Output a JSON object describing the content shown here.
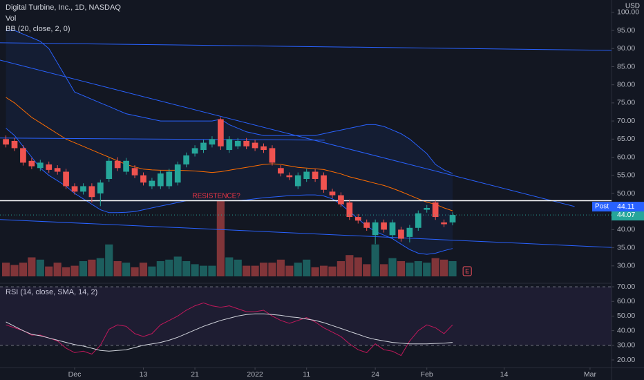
{
  "chart_data": {
    "type": "candlestick",
    "title": "Digital Turbine, Inc., 1D, NASDAQ",
    "currency": "USD",
    "x": [
      0,
      1,
      2,
      3,
      4,
      5,
      6,
      7,
      8,
      9,
      10,
      11,
      12,
      13,
      14,
      15,
      16,
      17,
      18,
      19,
      20,
      21,
      22,
      23,
      24,
      25,
      26,
      27,
      28,
      29,
      30,
      31,
      32,
      33,
      34,
      35,
      36,
      37,
      38,
      39,
      40,
      41,
      42,
      43,
      44,
      45,
      46,
      47,
      48,
      49,
      50,
      51,
      52
    ],
    "open": [
      65,
      64.5,
      62.5,
      59,
      57,
      58,
      57,
      56,
      52,
      50.5,
      52,
      50,
      54,
      59,
      56,
      57,
      55,
      52,
      52,
      52,
      53,
      58,
      61,
      62,
      63.5,
      70.5,
      62,
      63,
      64.5,
      64,
      63,
      62.5,
      57,
      55,
      52,
      54,
      56,
      55,
      50.5,
      49.5,
      47.5,
      43.5,
      42,
      38.5,
      42,
      38.5,
      40,
      38,
      40.5,
      45.5,
      47.5,
      42,
      42
    ],
    "high": [
      66,
      65.3,
      63.3,
      59.8,
      59.3,
      58.8,
      57.8,
      56.8,
      52.8,
      52.8,
      52.8,
      53.8,
      59.8,
      60,
      59.8,
      57.8,
      55.8,
      54.3,
      56.3,
      56.8,
      58.8,
      61.3,
      63.3,
      64.8,
      65.8,
      71,
      65.8,
      65.3,
      65.3,
      64.8,
      63.8,
      63.3,
      57.8,
      55.8,
      55.8,
      56.8,
      56.8,
      55.8,
      51.3,
      50.3,
      48.3,
      44.3,
      42.8,
      42.8,
      42.8,
      42.8,
      40.8,
      41.3,
      45.3,
      46.8,
      48,
      42.8,
      44.8
    ],
    "low": [
      62.7,
      61.7,
      57.7,
      56.7,
      56.2,
      55.7,
      55.2,
      51.2,
      49.7,
      49.7,
      47.5,
      46.5,
      53.2,
      56.2,
      55.2,
      54.2,
      52.2,
      51.2,
      51.2,
      51.2,
      52.2,
      57.2,
      60.2,
      61.2,
      62.7,
      62,
      61.2,
      62.2,
      62.2,
      61.7,
      61.2,
      57.7,
      54.7,
      53.7,
      51.2,
      53.2,
      53.2,
      50.2,
      48.7,
      46.2,
      42.7,
      41.7,
      39.7,
      36,
      39.2,
      37.7,
      36.7,
      36.5,
      39.7,
      44.7,
      42.7,
      40.7,
      41.2
    ],
    "close": [
      63.5,
      62.5,
      58.5,
      57.5,
      58.5,
      56.5,
      56,
      52,
      50.5,
      52,
      49,
      53,
      59,
      57,
      59,
      55,
      53,
      53.5,
      55.5,
      56,
      58,
      60.5,
      62.5,
      64,
      65,
      63,
      65,
      64.5,
      63,
      62.5,
      62,
      58.5,
      55.5,
      54.5,
      55,
      56,
      54,
      51,
      49.5,
      47,
      43.5,
      42.5,
      40.5,
      42,
      40,
      42,
      37.5,
      40.5,
      44.5,
      46,
      43.5,
      41.5,
      44.07
    ],
    "up_color": "#26a69a",
    "down_color": "#ef5350",
    "xlim": [
      -0.69,
      70.5
    ],
    "xticks": [
      {
        "value": 8,
        "label": "Dec"
      },
      {
        "value": 16,
        "label": "13"
      },
      {
        "value": 22,
        "label": "21"
      },
      {
        "value": 29,
        "label": "2022"
      },
      {
        "value": 35,
        "label": "11"
      },
      {
        "value": 43,
        "label": "24"
      },
      {
        "value": 49,
        "label": "Feb"
      },
      {
        "value": 58,
        "label": "14"
      },
      {
        "value": 68,
        "label": "Mar"
      }
    ],
    "ylim": [
      25.2,
      103.4
    ],
    "yticks": [
      {
        "value": 30,
        "label": "30.00"
      },
      {
        "value": 35,
        "label": "35.00"
      },
      {
        "value": 40,
        "label": "40.00"
      },
      {
        "value": 45,
        "label": "45.00"
      },
      {
        "value": 50,
        "label": "50.00"
      },
      {
        "value": 55,
        "label": "55.00"
      },
      {
        "value": 60,
        "label": "60.00"
      },
      {
        "value": 65,
        "label": "65.00"
      },
      {
        "value": 70,
        "label": "70.00"
      },
      {
        "value": 75,
        "label": "75.00"
      },
      {
        "value": 80,
        "label": "80.00"
      },
      {
        "value": 85,
        "label": "85.00"
      },
      {
        "value": 90,
        "label": "90.00"
      },
      {
        "value": 95,
        "label": "95.00"
      },
      {
        "value": 100,
        "label": "100.00"
      }
    ],
    "volume": {
      "name": "Vol",
      "values": [
        1.8,
        1.5,
        1.8,
        2.5,
        2.2,
        1.3,
        1.8,
        1.2,
        1.4,
        2.0,
        2.2,
        2.4,
        4.2,
        2.0,
        1.8,
        1.2,
        1.8,
        1.3,
        2.0,
        2.2,
        2.6,
        2.0,
        1.6,
        1.4,
        1.4,
        10.0,
        2.5,
        2.2,
        1.4,
        1.4,
        1.8,
        1.8,
        2.2,
        1.4,
        1.8,
        2.2,
        1.2,
        1.4,
        1.3,
        2.0,
        2.8,
        2.5,
        1.6,
        4.2,
        1.6,
        2.4,
        2.0,
        1.8,
        2.0,
        1.8,
        2.4,
        2.2,
        2.0
      ]
    },
    "bb": {
      "name": "BB (20, close, 2, 0)",
      "fill": "rgba(41,98,255,0.08)",
      "upper": {
        "color": "#2962ff",
        "values": [
          95,
          95,
          94,
          93,
          92,
          90,
          86,
          82,
          78,
          77,
          76,
          75,
          74,
          73,
          72,
          71.5,
          71,
          70.5,
          70,
          70,
          70,
          70,
          70,
          70,
          70,
          70.5,
          69,
          68,
          67,
          66.5,
          66,
          66,
          66,
          66,
          66,
          66,
          66,
          66.5,
          67,
          67.5,
          68,
          68.5,
          69,
          69,
          68.5,
          67.5,
          66.5,
          65,
          63,
          61,
          58,
          56.5,
          55.5
        ]
      },
      "basis": {
        "color": "#ff6d00",
        "values": [
          76.5,
          75,
          73,
          71,
          69.5,
          68,
          66.5,
          65,
          64,
          63,
          62,
          61,
          60,
          59,
          58,
          57.3,
          56.7,
          56.5,
          56.4,
          56.4,
          56.4,
          56.3,
          56.2,
          56,
          55.8,
          56,
          56.4,
          56.8,
          57.2,
          57.6,
          58,
          58.2,
          58,
          57.6,
          57.2,
          57,
          56.8,
          56.6,
          56,
          55.4,
          54.6,
          54,
          53.4,
          52.8,
          52.2,
          51.4,
          50.5,
          49.5,
          48.5,
          47.6,
          47,
          46,
          45.2
        ]
      },
      "lower": {
        "color": "#2962ff",
        "values": [
          68,
          66,
          63,
          60,
          57,
          55,
          53.5,
          52,
          50,
          48.5,
          47,
          45.5,
          44.7,
          44.7,
          44.8,
          45,
          45.5,
          46,
          46.5,
          47,
          47.5,
          48,
          48,
          48,
          48,
          48,
          48,
          48,
          48.2,
          48.5,
          48.8,
          49,
          49.2,
          49.4,
          49.5,
          49.6,
          49.6,
          49.3,
          48.5,
          47,
          45,
          43,
          41,
          39.5,
          38.5,
          37.5,
          36,
          34.5,
          33.5,
          33.2,
          33.5,
          34.2,
          34.8
        ]
      }
    },
    "drawings": [
      {
        "x": [
          -0.69,
          70.5
        ],
        "y": [
          91.6,
          89.5
        ],
        "color": "#2962ff"
      },
      {
        "x": [
          -0.69,
          66.2
        ],
        "y": [
          86.8,
          46.4
        ],
        "color": "#2962ff"
      },
      {
        "x": [
          -0.69,
          37.1
        ],
        "y": [
          65.3,
          64.7
        ],
        "color": "#2962ff"
      },
      {
        "x": [
          -0.69,
          70.5
        ],
        "y": [
          42.8,
          35.1
        ],
        "color": "#2962ff"
      },
      {
        "x": [
          -0.69,
          70.5
        ],
        "y": [
          48,
          48
        ],
        "color": "#ffffff"
      }
    ],
    "annotation": {
      "text": "RESISTENCE?",
      "x": 24.5,
      "y": 49.3,
      "color": "#f23645"
    },
    "post": {
      "label": "Post",
      "value": 44.11,
      "color": "#2962ff"
    },
    "last_price": 44.07,
    "earnings": {
      "label": "E",
      "x": 53.7
    },
    "rsi": {
      "name": "RSI (14, close, SMA, 14, 2)",
      "ylim": [
        14.8,
        72.4
      ],
      "yticks": [
        {
          "value": 20,
          "label": "20.00"
        },
        {
          "value": 30,
          "label": "30.00"
        },
        {
          "value": 40,
          "label": "40.00"
        },
        {
          "value": 50,
          "label": "50.00"
        },
        {
          "value": 60,
          "label": "60.00"
        },
        {
          "value": 70,
          "label": "70.00"
        }
      ],
      "bands": [
        70,
        30
      ],
      "series": [
        {
          "color": "#c2185b",
          "values": [
            44,
            42,
            40,
            37,
            37,
            35,
            33,
            28,
            25,
            26,
            24,
            30,
            41,
            44,
            43,
            38,
            36,
            38,
            44,
            47,
            50,
            54,
            57,
            59,
            57,
            56,
            57,
            55,
            53,
            53,
            54,
            50,
            47,
            45,
            47,
            49,
            46,
            42,
            39,
            36,
            31,
            27,
            25,
            31,
            27,
            26,
            23,
            33,
            40,
            44,
            42,
            38,
            44
          ]
        },
        {
          "color": "#d1d4dc",
          "values": [
            46,
            43,
            40,
            37.5,
            36.5,
            35,
            33.5,
            32,
            30.5,
            29.5,
            28,
            26.5,
            26,
            26.5,
            27,
            28.5,
            30,
            31,
            32,
            33.5,
            35.5,
            38,
            40.5,
            43,
            45,
            47,
            48.5,
            50,
            51,
            51.5,
            51.5,
            51,
            50.5,
            49.5,
            49,
            48,
            47,
            45.5,
            43.5,
            41.5,
            39.5,
            37.5,
            35.5,
            34,
            33,
            32,
            31.5,
            31,
            31,
            31,
            31.3,
            31.5,
            32
          ]
        }
      ]
    }
  }
}
